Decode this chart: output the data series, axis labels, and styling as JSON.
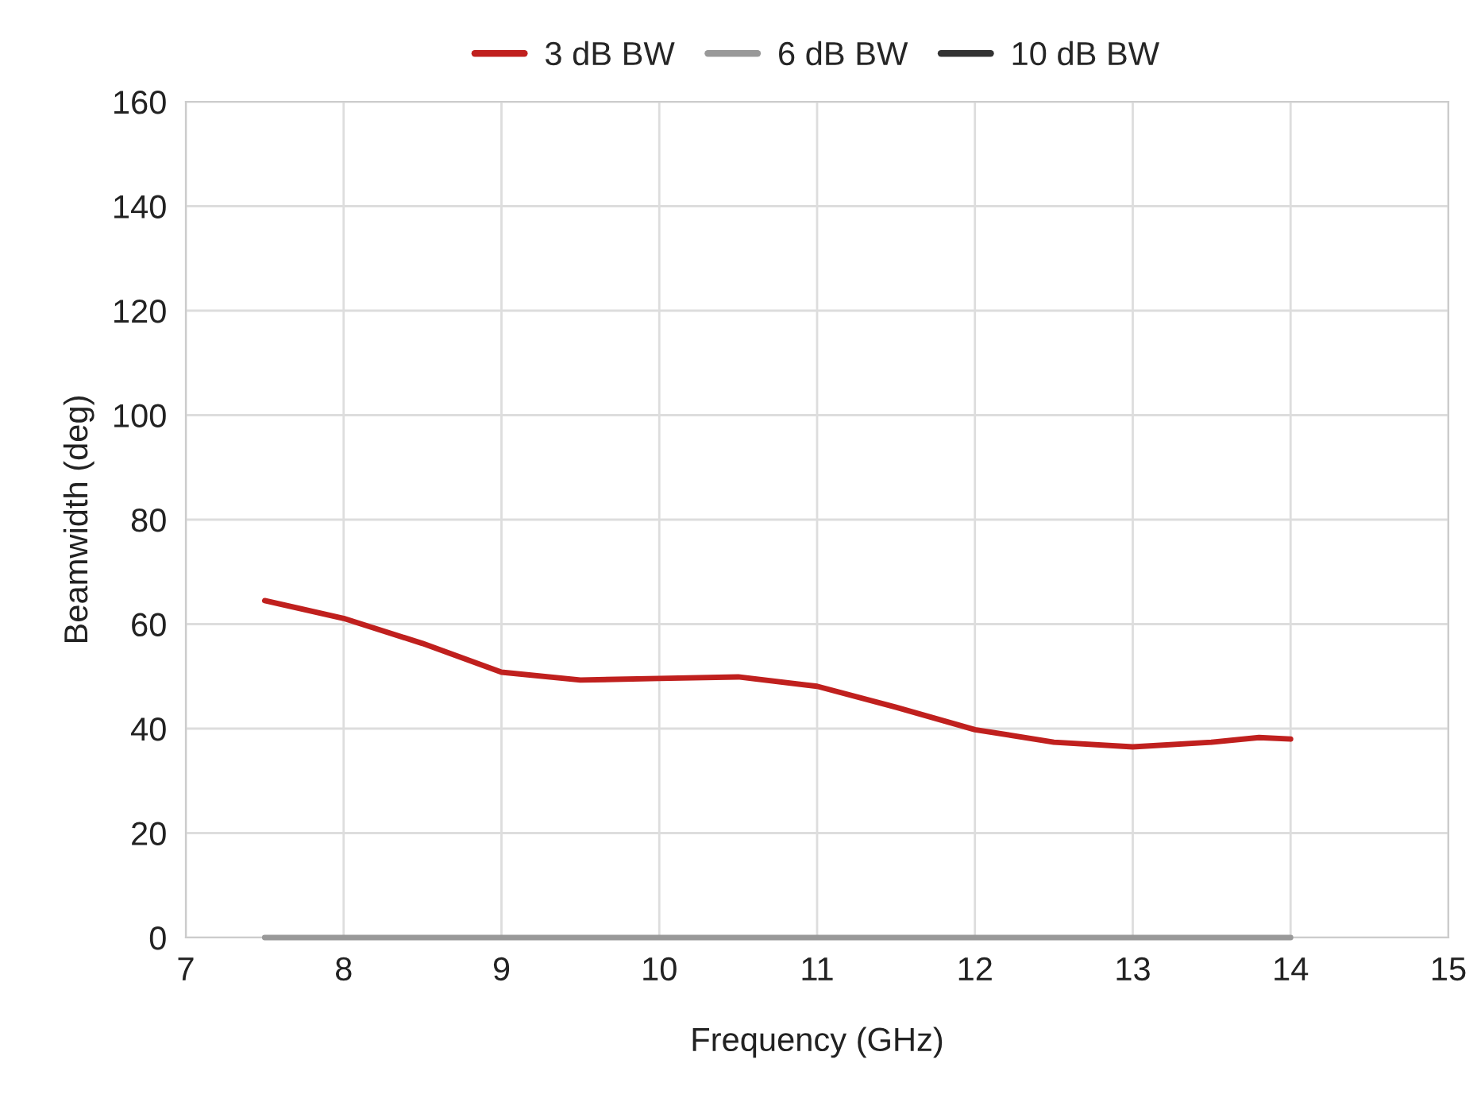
{
  "chart_data": {
    "type": "line",
    "xlabel": "Frequency (GHz)",
    "ylabel": "Beamwidth (deg)",
    "xlim": [
      7,
      15
    ],
    "xticks": [
      7,
      8,
      9,
      10,
      11,
      12,
      13,
      14,
      15
    ],
    "ylim": [
      0,
      160
    ],
    "yticks": [
      0,
      20,
      40,
      60,
      80,
      100,
      120,
      140,
      160
    ],
    "grid": true,
    "legend": "top",
    "marker": "none",
    "x": [
      7.5,
      8,
      8.5,
      9,
      9.5,
      10,
      10.5,
      11,
      11.5,
      12,
      12.5,
      13,
      13.5,
      13.8,
      14
    ],
    "series": [
      {
        "name": "3 dB BW",
        "color": "#c0201e",
        "values": [
          64.5,
          61.1,
          56.3,
          50.8,
          49.3,
          49.6,
          49.9,
          48.1,
          44.1,
          39.8,
          37.4,
          36.5,
          37.4,
          38.3,
          38.0
        ]
      },
      {
        "name": "6 dB BW",
        "color": "#999999",
        "values": [
          0,
          0,
          0,
          0,
          0,
          0,
          0,
          0,
          0,
          0,
          0,
          0,
          0,
          0,
          0
        ]
      },
      {
        "name": "10 dB BW",
        "color": "#333333",
        "values": [
          null,
          null,
          null,
          null,
          null,
          null,
          null,
          null,
          null,
          null,
          null,
          null,
          null,
          null,
          null
        ]
      }
    ]
  }
}
